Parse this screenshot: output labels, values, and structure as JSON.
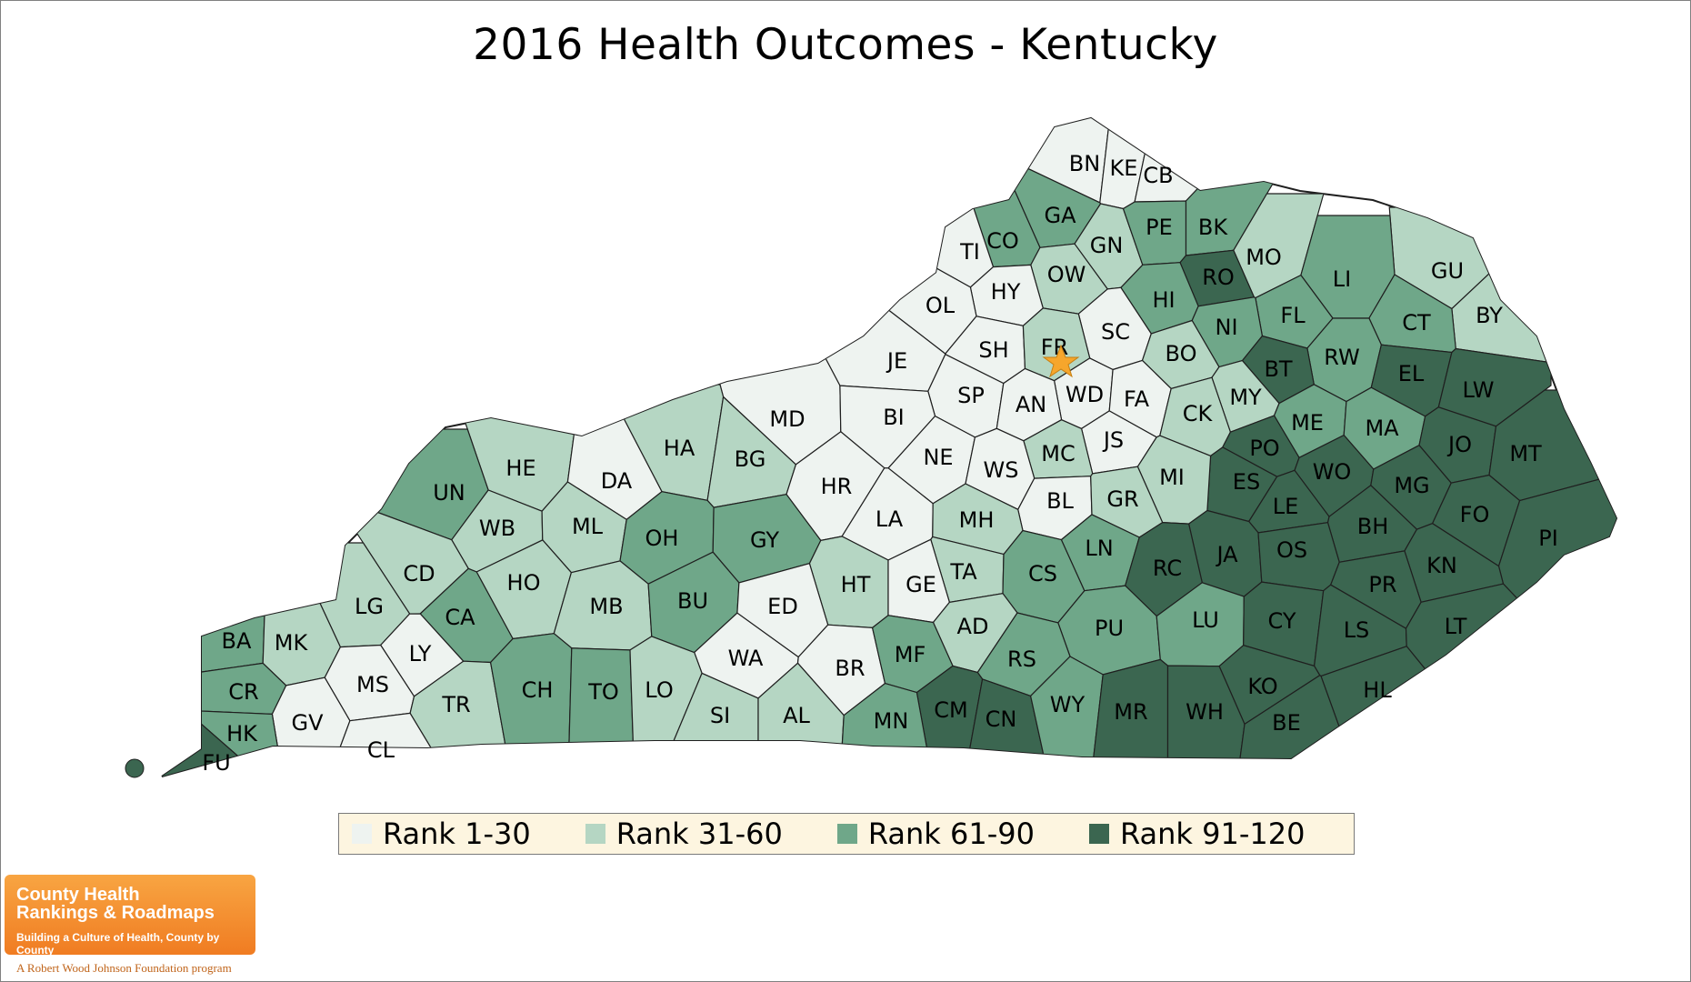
{
  "title": "2016 Health Outcomes - Kentucky",
  "colors": {
    "rank_1_30": "#eef3f0",
    "rank_31_60": "#b5d6c3",
    "rank_61_90": "#6fa789",
    "rank_91_120": "#3b6650",
    "state_capital_star": "#f6a62c"
  },
  "legend": [
    {
      "label": "Rank 1-30",
      "color": "#eef3f0"
    },
    {
      "label": "Rank 31-60",
      "color": "#b5d6c3"
    },
    {
      "label": "Rank 61-90",
      "color": "#6fa789"
    },
    {
      "label": "Rank 91-120",
      "color": "#3b6650"
    }
  ],
  "counties": [
    {
      "code": "BN",
      "rank_group": 1
    },
    {
      "code": "KE",
      "rank_group": 1
    },
    {
      "code": "CB",
      "rank_group": 1
    },
    {
      "code": "GA",
      "rank_group": 3
    },
    {
      "code": "CO",
      "rank_group": 3
    },
    {
      "code": "GN",
      "rank_group": 2
    },
    {
      "code": "PE",
      "rank_group": 3
    },
    {
      "code": "BK",
      "rank_group": 3
    },
    {
      "code": "MO",
      "rank_group": 2
    },
    {
      "code": "GU",
      "rank_group": 2
    },
    {
      "code": "TI",
      "rank_group": 1
    },
    {
      "code": "OW",
      "rank_group": 2
    },
    {
      "code": "RO",
      "rank_group": 4
    },
    {
      "code": "LI",
      "rank_group": 3
    },
    {
      "code": "HY",
      "rank_group": 1
    },
    {
      "code": "HI",
      "rank_group": 3
    },
    {
      "code": "OL",
      "rank_group": 1
    },
    {
      "code": "BY",
      "rank_group": 2
    },
    {
      "code": "FL",
      "rank_group": 3
    },
    {
      "code": "CT",
      "rank_group": 3
    },
    {
      "code": "NI",
      "rank_group": 3
    },
    {
      "code": "SC",
      "rank_group": 1
    },
    {
      "code": "SH",
      "rank_group": 1
    },
    {
      "code": "FR",
      "rank_group": 2
    },
    {
      "code": "BO",
      "rank_group": 2
    },
    {
      "code": "RW",
      "rank_group": 3
    },
    {
      "code": "BT",
      "rank_group": 4
    },
    {
      "code": "EL",
      "rank_group": 4
    },
    {
      "code": "JE",
      "rank_group": 1
    },
    {
      "code": "MD",
      "rank_group": 1
    },
    {
      "code": "SP",
      "rank_group": 1
    },
    {
      "code": "WD",
      "rank_group": 1
    },
    {
      "code": "FA",
      "rank_group": 1
    },
    {
      "code": "AN",
      "rank_group": 1
    },
    {
      "code": "MY",
      "rank_group": 2
    },
    {
      "code": "LW",
      "rank_group": 4
    },
    {
      "code": "BI",
      "rank_group": 1
    },
    {
      "code": "CK",
      "rank_group": 2
    },
    {
      "code": "ME",
      "rank_group": 3
    },
    {
      "code": "HA",
      "rank_group": 2
    },
    {
      "code": "JS",
      "rank_group": 1
    },
    {
      "code": "MA",
      "rank_group": 3
    },
    {
      "code": "PO",
      "rank_group": 4
    },
    {
      "code": "JO",
      "rank_group": 4
    },
    {
      "code": "MT",
      "rank_group": 4
    },
    {
      "code": "HE",
      "rank_group": 2
    },
    {
      "code": "BG",
      "rank_group": 2
    },
    {
      "code": "NE",
      "rank_group": 1
    },
    {
      "code": "MC",
      "rank_group": 2
    },
    {
      "code": "WS",
      "rank_group": 1
    },
    {
      "code": "DA",
      "rank_group": 1
    },
    {
      "code": "HR",
      "rank_group": 1
    },
    {
      "code": "ES",
      "rank_group": 4
    },
    {
      "code": "WO",
      "rank_group": 4
    },
    {
      "code": "MI",
      "rank_group": 2
    },
    {
      "code": "MG",
      "rank_group": 4
    },
    {
      "code": "UN",
      "rank_group": 3
    },
    {
      "code": "BL",
      "rank_group": 1
    },
    {
      "code": "GR",
      "rank_group": 2
    },
    {
      "code": "LE",
      "rank_group": 4
    },
    {
      "code": "LA",
      "rank_group": 1
    },
    {
      "code": "MH",
      "rank_group": 2
    },
    {
      "code": "BH",
      "rank_group": 4
    },
    {
      "code": "FO",
      "rank_group": 4
    },
    {
      "code": "PI",
      "rank_group": 4
    },
    {
      "code": "WB",
      "rank_group": 2
    },
    {
      "code": "ML",
      "rank_group": 2
    },
    {
      "code": "OH",
      "rank_group": 3
    },
    {
      "code": "GY",
      "rank_group": 3
    },
    {
      "code": "LN",
      "rank_group": 3
    },
    {
      "code": "JA",
      "rank_group": 4
    },
    {
      "code": "RC",
      "rank_group": 4
    },
    {
      "code": "OS",
      "rank_group": 4
    },
    {
      "code": "KN",
      "rank_group": 4
    },
    {
      "code": "CD",
      "rank_group": 2
    },
    {
      "code": "HO",
      "rank_group": 2
    },
    {
      "code": "HT",
      "rank_group": 2
    },
    {
      "code": "TA",
      "rank_group": 2
    },
    {
      "code": "GE",
      "rank_group": 1
    },
    {
      "code": "CS",
      "rank_group": 3
    },
    {
      "code": "PR",
      "rank_group": 4
    },
    {
      "code": "LG",
      "rank_group": 2
    },
    {
      "code": "CA",
      "rank_group": 3
    },
    {
      "code": "MB",
      "rank_group": 2
    },
    {
      "code": "BU",
      "rank_group": 3
    },
    {
      "code": "ED",
      "rank_group": 1
    },
    {
      "code": "PU",
      "rank_group": 3
    },
    {
      "code": "LU",
      "rank_group": 3
    },
    {
      "code": "CY",
      "rank_group": 4
    },
    {
      "code": "LS",
      "rank_group": 4
    },
    {
      "code": "LT",
      "rank_group": 4
    },
    {
      "code": "BA",
      "rank_group": 3
    },
    {
      "code": "MK",
      "rank_group": 2
    },
    {
      "code": "LY",
      "rank_group": 1
    },
    {
      "code": "AD",
      "rank_group": 2
    },
    {
      "code": "MS",
      "rank_group": 1
    },
    {
      "code": "WA",
      "rank_group": 1
    },
    {
      "code": "BR",
      "rank_group": 1
    },
    {
      "code": "MF",
      "rank_group": 3
    },
    {
      "code": "RS",
      "rank_group": 3
    },
    {
      "code": "KO",
      "rank_group": 4
    },
    {
      "code": "CR",
      "rank_group": 3
    },
    {
      "code": "GV",
      "rank_group": 1
    },
    {
      "code": "TR",
      "rank_group": 2
    },
    {
      "code": "CH",
      "rank_group": 3
    },
    {
      "code": "TO",
      "rank_group": 3
    },
    {
      "code": "LO",
      "rank_group": 2
    },
    {
      "code": "HL",
      "rank_group": 4
    },
    {
      "code": "SI",
      "rank_group": 2
    },
    {
      "code": "AL",
      "rank_group": 2
    },
    {
      "code": "CM",
      "rank_group": 4
    },
    {
      "code": "CN",
      "rank_group": 4
    },
    {
      "code": "WY",
      "rank_group": 3
    },
    {
      "code": "MR",
      "rank_group": 4
    },
    {
      "code": "WH",
      "rank_group": 4
    },
    {
      "code": "BE",
      "rank_group": 4
    },
    {
      "code": "HK",
      "rank_group": 3
    },
    {
      "code": "CL",
      "rank_group": 1
    },
    {
      "code": "MN",
      "rank_group": 3
    },
    {
      "code": "FU",
      "rank_group": 4
    }
  ],
  "logo": {
    "line1": "County Health",
    "line2": "Rankings & Roadmaps",
    "tagline": "Building a Culture of Health, County by County",
    "subtitle": "A Robert Wood Johnson Foundation program"
  }
}
